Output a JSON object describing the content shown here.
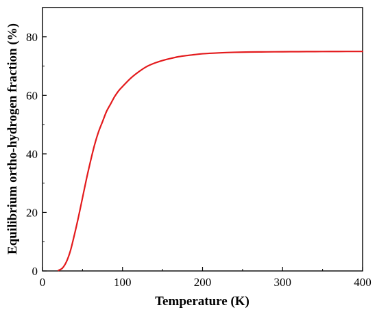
{
  "chart_data": {
    "type": "line",
    "title": "",
    "xlabel": "Temperature (K)",
    "ylabel": "Equilibrium ortho-hydrogen fraction (%)",
    "xlim": [
      0,
      400
    ],
    "ylim": [
      0,
      90
    ],
    "xticks": [
      0,
      100,
      200,
      300,
      400
    ],
    "yticks": [
      0,
      20,
      40,
      60,
      80
    ],
    "grid": false,
    "legend": "none",
    "series": [
      {
        "color": "#e31a1c",
        "x": [
          20,
          25,
          30,
          35,
          40,
          45,
          50,
          55,
          60,
          65,
          70,
          75,
          80,
          85,
          90,
          95,
          100,
          110,
          120,
          130,
          140,
          150,
          160,
          170,
          180,
          190,
          200,
          220,
          240,
          260,
          280,
          300,
          320,
          340,
          360,
          380,
          400
        ],
        "y": [
          0.2,
          1.0,
          3.2,
          7.0,
          12.5,
          18.5,
          25.0,
          31.5,
          37.5,
          43.0,
          47.5,
          51.0,
          54.5,
          57.0,
          59.5,
          61.5,
          63.0,
          65.8,
          68.0,
          69.8,
          71.0,
          71.9,
          72.6,
          73.2,
          73.6,
          73.9,
          74.2,
          74.5,
          74.7,
          74.8,
          74.85,
          74.9,
          74.93,
          74.96,
          74.98,
          74.99,
          75.0
        ]
      }
    ]
  }
}
